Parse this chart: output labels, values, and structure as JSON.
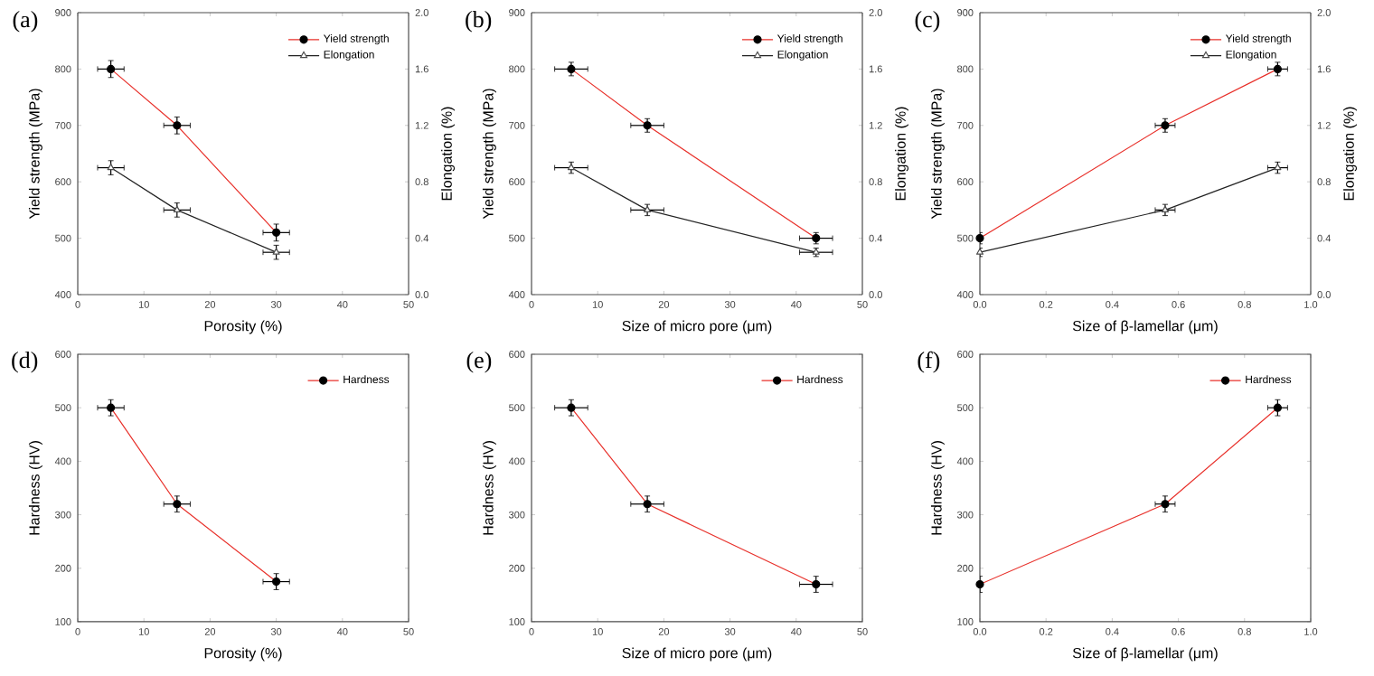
{
  "chart_data": [
    {
      "type": "line",
      "title": "(a)",
      "xlabel": "Porosity (%)",
      "ylabel": "Yield strength (MPa)",
      "y2label": "Elongation (%)",
      "x": [
        5,
        15,
        30
      ],
      "xlim": [
        0,
        50
      ],
      "xticks": [
        0,
        10,
        20,
        30,
        40,
        50
      ],
      "ylim": [
        400,
        900
      ],
      "yticks": [
        400,
        500,
        600,
        700,
        800,
        900
      ],
      "y2lim": [
        0,
        2
      ],
      "y2ticks": [
        {
          "value": 0,
          "label": "0.0"
        },
        {
          "value": 0.4,
          "label": "0.4"
        },
        {
          "value": 0.8,
          "label": "0.8"
        },
        {
          "value": 1.2,
          "label": "1.2"
        },
        {
          "value": 1.6,
          "label": "1.6"
        },
        {
          "value": 2,
          "label": "2.0"
        }
      ],
      "legend": "top right",
      "grid": false,
      "series": [
        {
          "name": "Yield strength",
          "color": "#e8302a",
          "marker": "circle",
          "values": [
            800,
            700,
            510
          ],
          "errors": [
            15,
            15,
            15
          ],
          "xerrors": [
            2,
            2,
            2
          ]
        },
        {
          "name": "Elongation",
          "color": "#222222",
          "marker": "triangle",
          "axis": "y2",
          "values": [
            0.9,
            0.6,
            0.3
          ],
          "errors": [
            0.05,
            0.05,
            0.05
          ],
          "xerrors": [
            2,
            2,
            2
          ]
        }
      ]
    },
    {
      "type": "line",
      "title": "(b)",
      "xlabel": "Size of micro pore (μm)",
      "ylabel": "Yield strength (MPa)",
      "y2label": "Elongation (%)",
      "x": [
        6,
        17.5,
        43
      ],
      "xlim": [
        0,
        50
      ],
      "xticks": [
        0,
        10,
        20,
        30,
        40,
        50
      ],
      "ylim": [
        400,
        900
      ],
      "yticks": [
        400,
        500,
        600,
        700,
        800,
        900
      ],
      "y2lim": [
        0,
        2
      ],
      "y2ticks": [
        {
          "value": 0,
          "label": "0.0"
        },
        {
          "value": 0.4,
          "label": "0.4"
        },
        {
          "value": 0.8,
          "label": "0.8"
        },
        {
          "value": 1.2,
          "label": "1.2"
        },
        {
          "value": 1.6,
          "label": "1.6"
        },
        {
          "value": 2,
          "label": "2.0"
        }
      ],
      "legend": "top right",
      "grid": false,
      "series": [
        {
          "name": "Yield strength",
          "color": "#e8302a",
          "marker": "circle",
          "values": [
            800,
            700,
            500
          ],
          "errors": [
            12,
            12,
            10
          ],
          "xerrors": [
            2.5,
            2.5,
            2.5
          ]
        },
        {
          "name": "Elongation",
          "color": "#222222",
          "marker": "triangle",
          "axis": "y2",
          "values": [
            0.9,
            0.6,
            0.3
          ],
          "errors": [
            0.04,
            0.04,
            0.03
          ],
          "xerrors": [
            2.5,
            2.5,
            2.5
          ]
        }
      ]
    },
    {
      "type": "line",
      "title": "(c)",
      "xlabel": "Size of β-lamellar (μm)",
      "ylabel": "Yield strength (MPa)",
      "y2label": "Elongation (%)",
      "x": [
        0,
        0.56,
        0.9
      ],
      "xlim": [
        0,
        1
      ],
      "xticks": [
        {
          "value": 0,
          "label": "0.0"
        },
        {
          "value": 0.2,
          "label": "0.2"
        },
        {
          "value": 0.4,
          "label": "0.4"
        },
        {
          "value": 0.6,
          "label": "0.6"
        },
        {
          "value": 0.8,
          "label": "0.8"
        },
        {
          "value": 1,
          "label": "1.0"
        }
      ],
      "ylim": [
        400,
        900
      ],
      "yticks": [
        400,
        500,
        600,
        700,
        800,
        900
      ],
      "y2lim": [
        0,
        2
      ],
      "y2ticks": [
        {
          "value": 0,
          "label": "0.0"
        },
        {
          "value": 0.4,
          "label": "0.4"
        },
        {
          "value": 0.8,
          "label": "0.8"
        },
        {
          "value": 1.2,
          "label": "1.2"
        },
        {
          "value": 1.6,
          "label": "1.6"
        },
        {
          "value": 2,
          "label": "2.0"
        }
      ],
      "legend": "top right",
      "grid": false,
      "series": [
        {
          "name": "Yield strength",
          "color": "#e8302a",
          "marker": "circle",
          "values": [
            500,
            700,
            800
          ],
          "errors": [
            10,
            12,
            12
          ],
          "xerrors": [
            null,
            0.03,
            0.03
          ]
        },
        {
          "name": "Elongation",
          "color": "#222222",
          "marker": "triangle",
          "axis": "y2",
          "values": [
            0.3,
            0.6,
            0.9
          ],
          "errors": [
            0.03,
            0.04,
            0.04
          ],
          "xerrors": [
            null,
            0.03,
            0.03
          ]
        }
      ]
    },
    {
      "type": "line",
      "title": "(d)",
      "xlabel": "Porosity (%)",
      "ylabel": "Hardness (HV)",
      "x": [
        5,
        15,
        30
      ],
      "xlim": [
        0,
        50
      ],
      "xticks": [
        0,
        10,
        20,
        30,
        40,
        50
      ],
      "ylim": [
        100,
        600
      ],
      "yticks": [
        100,
        200,
        300,
        400,
        500,
        600
      ],
      "legend": "top right",
      "grid": false,
      "series": [
        {
          "name": "Hardness",
          "color": "#e8302a",
          "marker": "circle",
          "values": [
            500,
            320,
            175
          ],
          "errors": [
            15,
            15,
            15
          ],
          "xerrors": [
            2,
            2,
            2
          ]
        }
      ]
    },
    {
      "type": "line",
      "title": "(e)",
      "xlabel": "Size of micro pore (μm)",
      "ylabel": "Hardness (HV)",
      "x": [
        6,
        17.5,
        43
      ],
      "xlim": [
        0,
        50
      ],
      "xticks": [
        0,
        10,
        20,
        30,
        40,
        50
      ],
      "ylim": [
        100,
        600
      ],
      "yticks": [
        100,
        200,
        300,
        400,
        500,
        600
      ],
      "legend": "top right",
      "grid": false,
      "series": [
        {
          "name": "Hardness",
          "color": "#e8302a",
          "marker": "circle",
          "values": [
            500,
            320,
            170
          ],
          "errors": [
            15,
            15,
            15
          ],
          "xerrors": [
            2.5,
            2.5,
            2.5
          ]
        }
      ]
    },
    {
      "type": "line",
      "title": "(f)",
      "xlabel": "Size of β-lamellar (μm)",
      "ylabel": "Hardness (HV)",
      "x": [
        0,
        0.56,
        0.9
      ],
      "xlim": [
        0,
        1
      ],
      "xticks": [
        {
          "value": 0,
          "label": "0.0"
        },
        {
          "value": 0.2,
          "label": "0.2"
        },
        {
          "value": 0.4,
          "label": "0.4"
        },
        {
          "value": 0.6,
          "label": "0.6"
        },
        {
          "value": 0.8,
          "label": "0.8"
        },
        {
          "value": 1,
          "label": "1.0"
        }
      ],
      "ylim": [
        100,
        600
      ],
      "yticks": [
        100,
        200,
        300,
        400,
        500,
        600
      ],
      "legend": "top right",
      "grid": false,
      "series": [
        {
          "name": "Hardness",
          "color": "#e8302a",
          "marker": "circle",
          "values": [
            170,
            320,
            500
          ],
          "errors": [
            15,
            15,
            15
          ],
          "xerrors": [
            null,
            0.03,
            0.03
          ]
        }
      ]
    }
  ]
}
